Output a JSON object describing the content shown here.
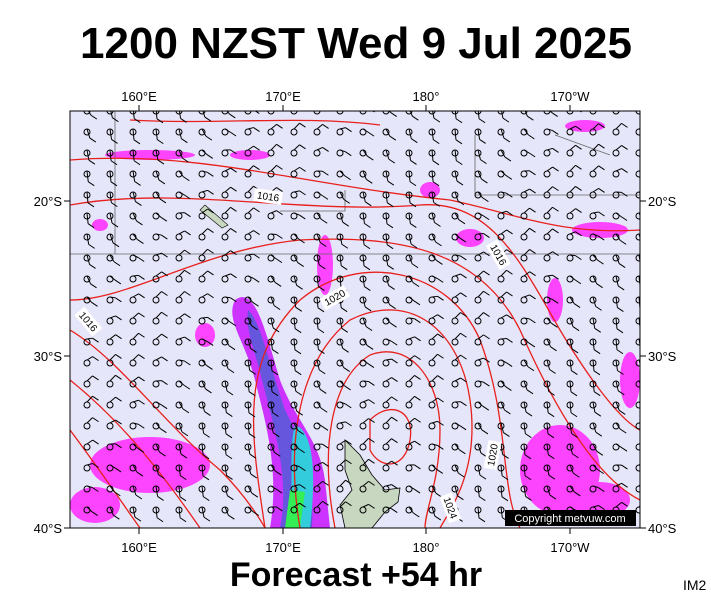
{
  "title": "1200 NZST Wed 9 Jul 2025",
  "footer": "Forecast +54 hr",
  "corner_label": "IM2",
  "copyright": "Copyright metvuw.com",
  "top_axis": [
    "160°E",
    "170°E",
    "180°",
    "170°W"
  ],
  "bottom_axis": [
    "160°E",
    "170°E",
    "180°",
    "170°W"
  ],
  "left_axis": [
    "20°S",
    "30°S",
    "40°S"
  ],
  "right_axis": [
    "20°S",
    "30°S",
    "40°S"
  ],
  "isobar_labels": [
    "1016",
    "1016",
    "1020",
    "1016",
    "1020",
    "1024"
  ]
}
